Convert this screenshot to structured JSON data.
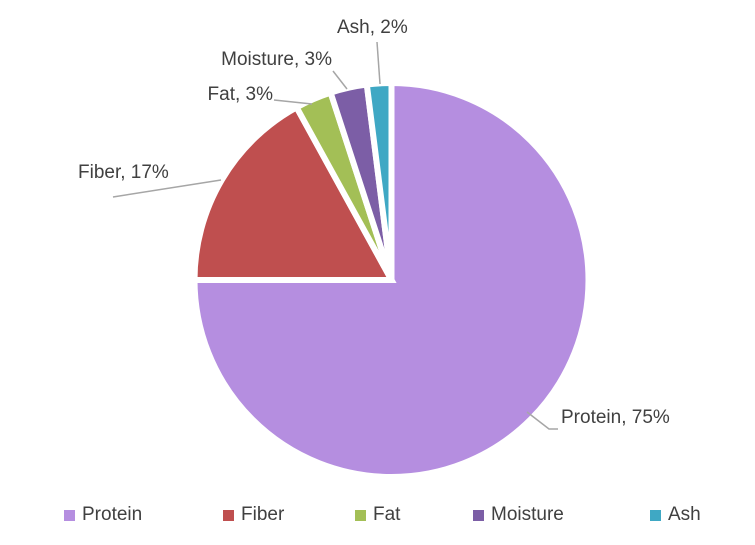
{
  "chart_data": {
    "type": "pie",
    "categories": [
      "Protein",
      "Fiber",
      "Fat",
      "Moisture",
      "Ash"
    ],
    "values": [
      75,
      17,
      3,
      3,
      2
    ],
    "unit": "%",
    "colors": [
      "#B58EE0",
      "#BF4F4F",
      "#A3BF56",
      "#7C5EA6",
      "#3FA8C4"
    ],
    "data_labels": [
      "Protein, 75%",
      "Fiber, 17%",
      "Fat, 3%",
      "Moisture, 3%",
      "Ash, 2%"
    ],
    "start_angle_deg": 0,
    "direction": "clockwise",
    "slice_border_color": "#FFFFFF",
    "label_color": "#404040",
    "leader_line_color": "#A6A6A6",
    "background": "#FFFFFF",
    "legend": {
      "position": "bottom",
      "entries": [
        "Protein",
        "Fiber",
        "Fat",
        "Moisture",
        "Ash"
      ]
    }
  }
}
